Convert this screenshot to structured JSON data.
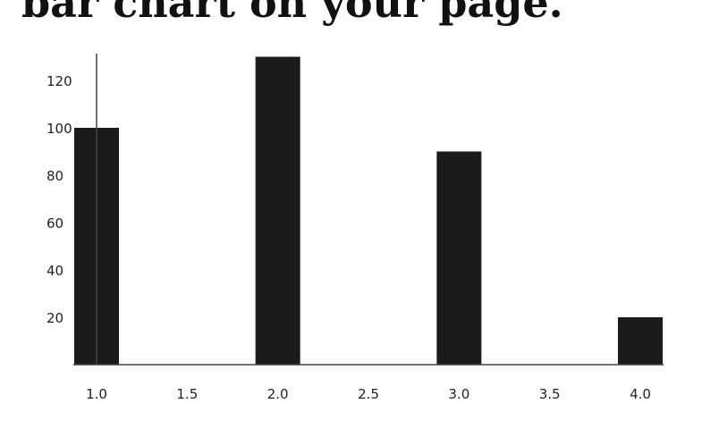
{
  "page": {
    "heading": "bar chart on your page."
  },
  "chart_data": {
    "type": "bar",
    "title": "",
    "xlabel": "",
    "ylabel": "",
    "x": [
      1.0,
      2.0,
      3.0,
      4.0
    ],
    "values": [
      100,
      130,
      90,
      20
    ],
    "xlim": [
      1.0,
      4.0
    ],
    "ylim": [
      0,
      130
    ],
    "x_ticks": [
      1.0,
      1.5,
      2.0,
      2.5,
      3.0,
      3.5,
      4.0
    ],
    "x_tick_labels": [
      "1.0",
      "1.5",
      "2.0",
      "2.5",
      "3.0",
      "3.5",
      "4.0"
    ],
    "y_ticks": [
      20,
      40,
      60,
      80,
      100,
      120
    ],
    "y_tick_labels": [
      "20",
      "40",
      "60",
      "80",
      "100",
      "120"
    ],
    "bar_color": "#1b1b1b",
    "axis_color": "#444444",
    "grid": false,
    "legend": "none"
  }
}
